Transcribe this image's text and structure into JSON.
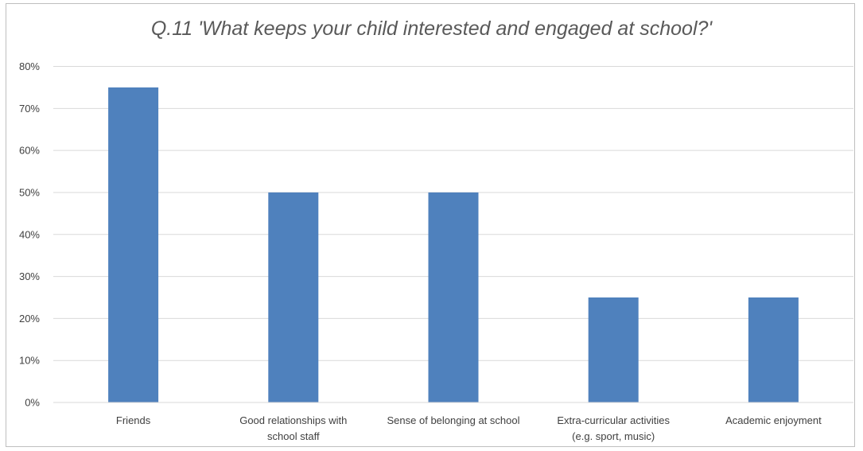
{
  "chart_data": {
    "type": "bar",
    "title": "Q.11 'What keeps your child interested and engaged at school?'",
    "categories": [
      [
        "Friends"
      ],
      [
        "Good relationships with",
        "school staff"
      ],
      [
        "Sense of belonging at school"
      ],
      [
        "Extra-curricular activities",
        "(e.g. sport, music)"
      ],
      [
        "Academic enjoyment"
      ]
    ],
    "values": [
      75,
      50,
      50,
      25,
      25
    ],
    "value_unit": "%",
    "xlabel": "",
    "ylabel": "",
    "ylim": [
      0,
      80
    ],
    "yticks": [
      "0%",
      "10%",
      "20%",
      "30%",
      "40%",
      "50%",
      "60%",
      "70%",
      "80%"
    ],
    "grid": true,
    "legend": "none",
    "bar_color": "#4f81bd",
    "gridline_color": "#d9d9d9"
  }
}
